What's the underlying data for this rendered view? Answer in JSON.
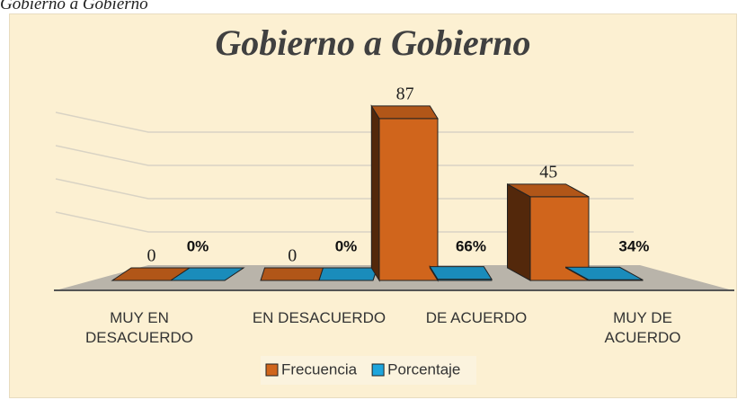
{
  "caption": "Gobierno a Gobierno",
  "chart_data": {
    "type": "bar3d",
    "title": "Gobierno a Gobierno",
    "categories": [
      "MUY EN DESACUERDO",
      "EN DESACUERDO",
      "DE ACUERDO",
      "MUY DE ACUERDO"
    ],
    "series": [
      {
        "name": "Frecuencia",
        "color": "#d0651c",
        "values": [
          0,
          0,
          87,
          45
        ]
      },
      {
        "name": "Porcentaje",
        "color": "#1ea5dc",
        "values": [
          0,
          0,
          0.66,
          0.34
        ],
        "value_labels": [
          "0%",
          "0%",
          "66%",
          "34%"
        ]
      }
    ],
    "ylim": [
      0,
      100
    ],
    "yticks": [
      20,
      40,
      60,
      80
    ],
    "grid": true,
    "legend": "bottom"
  }
}
